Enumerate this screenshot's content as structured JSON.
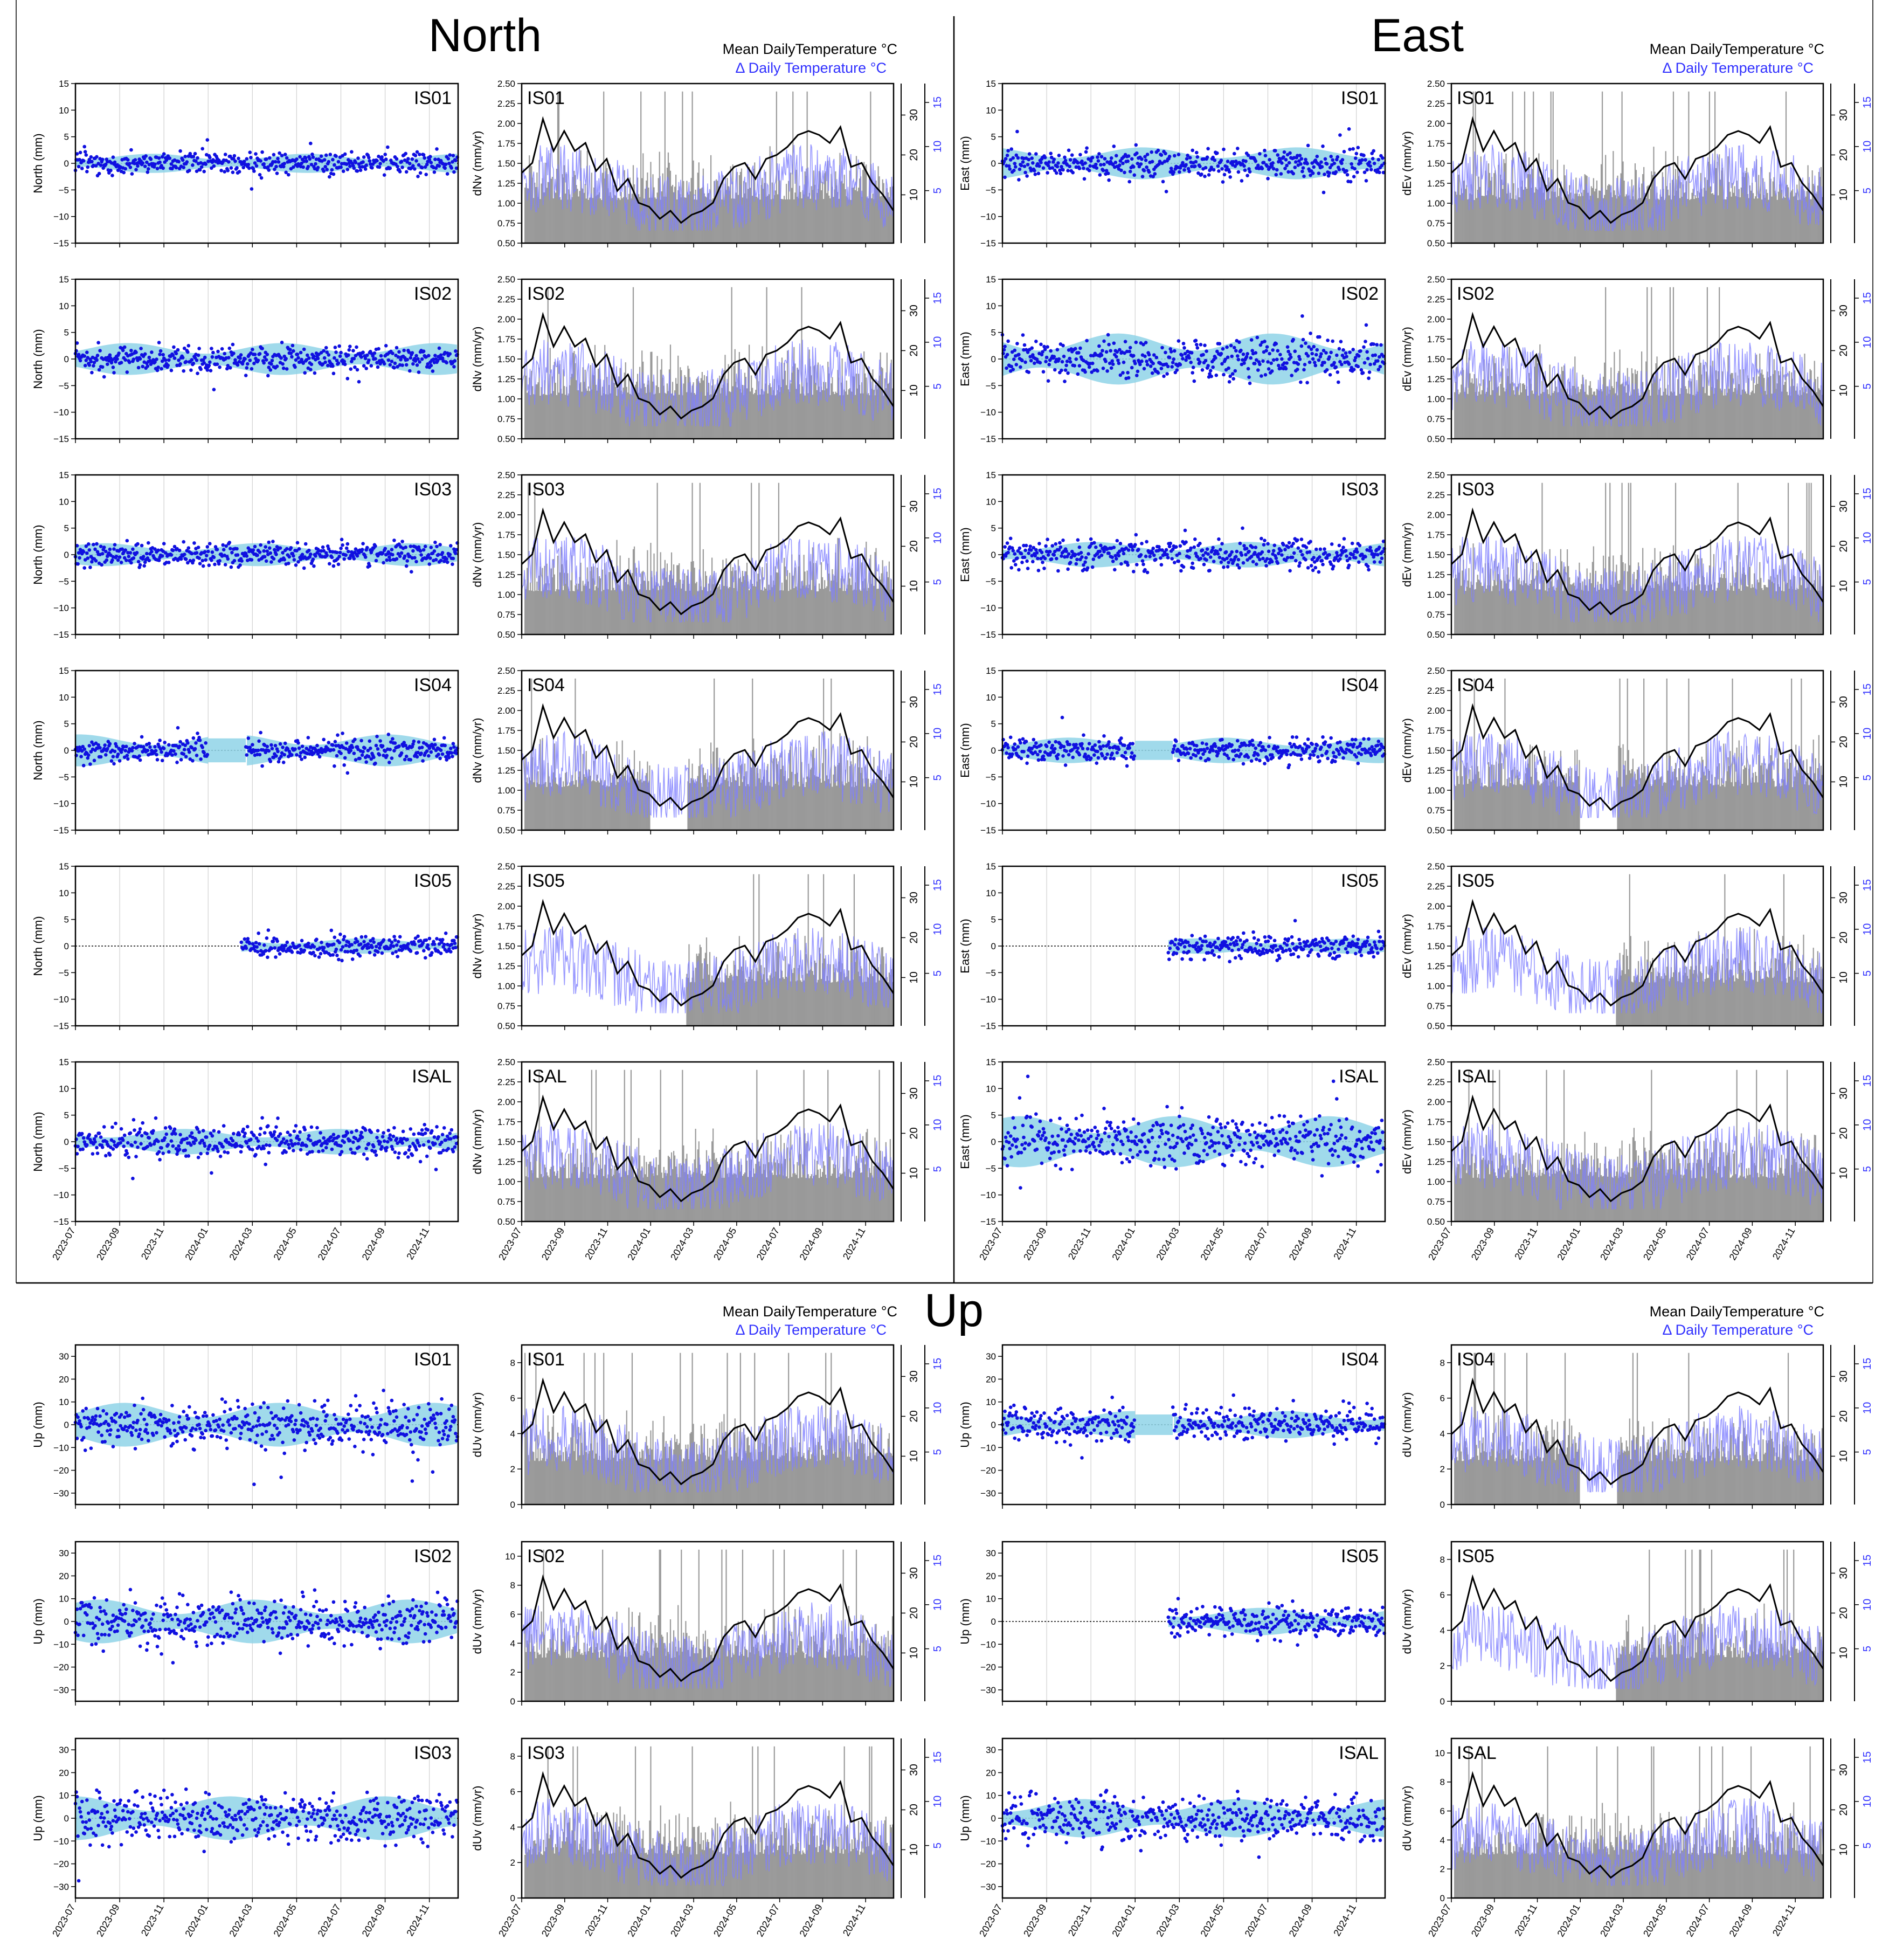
{
  "figure": {
    "sections": [
      {
        "id": "north",
        "title": "North",
        "legend": {
          "mean": "Mean DailyTemperature °C",
          "delta": "Δ  Daily Temperature °C"
        }
      },
      {
        "id": "east",
        "title": "East",
        "legend": {
          "mean": "Mean DailyTemperature °C",
          "delta": "Δ  Daily Temperature °C"
        }
      },
      {
        "id": "up",
        "title": "Up",
        "legend": {
          "mean": "Mean DailyTemperature °C",
          "delta": "Δ  Daily Temperature °C"
        }
      }
    ]
  },
  "chart_data": {
    "type": "scatter",
    "x_axis": {
      "start": "2023-07",
      "end": "2024-12",
      "tick_labels": [
        "2023-07",
        "2023-09",
        "2023-11",
        "2024-01",
        "2024-03",
        "2024-05",
        "2024-07",
        "2024-09",
        "2024-11"
      ]
    },
    "temperature_axis": {
      "mean_ticks": [
        "10",
        "20",
        "30"
      ],
      "delta_ticks": [
        "5",
        "10",
        "15"
      ]
    },
    "mean_temperature_curve": [
      15.5,
      18,
      29,
      21,
      26,
      21,
      23,
      16,
      19,
      11,
      14,
      8,
      7,
      4,
      6,
      3,
      5,
      6,
      8,
      14,
      17,
      18,
      14,
      19,
      20,
      22,
      25,
      26,
      25,
      23,
      27,
      17,
      18,
      13,
      10,
      6
    ],
    "panels": [
      {
        "section": "north",
        "component": "North",
        "station": "IS01",
        "disp_ylabel": "North (mm)",
        "disp_ylim": [
          -15,
          15
        ],
        "disp_ticks": [
          "15",
          "10",
          "5",
          "0",
          "−5",
          "−10",
          "−15"
        ],
        "rate_ylabel": "dNv (mm/yr)",
        "rate_ylim": [
          0.5,
          2.5
        ],
        "rate_ticks": [
          "2.50",
          "2.25",
          "2.00",
          "1.75",
          "1.50",
          "1.25",
          "1.00",
          "0.75",
          "0.50"
        ],
        "band": 1.5,
        "spread": 1.4,
        "seed": 11,
        "start_month": 0,
        "gap": null,
        "show_x": false
      },
      {
        "section": "north",
        "component": "North",
        "station": "IS02",
        "disp_ylabel": "North (mm)",
        "disp_ylim": [
          -15,
          15
        ],
        "disp_ticks": [
          "15",
          "10",
          "5",
          "0",
          "−5",
          "−10",
          "−15"
        ],
        "rate_ylabel": "dNv (mm/yr)",
        "rate_ylim": [
          0.5,
          2.5
        ],
        "rate_ticks": [
          "2.50",
          "2.25",
          "2.00",
          "1.75",
          "1.50",
          "1.25",
          "1.00",
          "0.75",
          "0.50"
        ],
        "band": 2.5,
        "spread": 1.7,
        "seed": 12,
        "start_month": 0,
        "gap": null,
        "show_x": false
      },
      {
        "section": "north",
        "component": "North",
        "station": "IS03",
        "disp_ylabel": "North (mm)",
        "disp_ylim": [
          -15,
          15
        ],
        "disp_ticks": [
          "15",
          "10",
          "5",
          "0",
          "−5",
          "−10",
          "−15"
        ],
        "rate_ylabel": "dNv (mm/yr)",
        "rate_ylim": [
          0.5,
          2.5
        ],
        "rate_ticks": [
          "2.50",
          "2.25",
          "2.00",
          "1.75",
          "1.50",
          "1.25",
          "1.00",
          "0.75",
          "0.50"
        ],
        "band": 1.8,
        "spread": 1.6,
        "seed": 13,
        "start_month": 0,
        "gap": null,
        "show_x": false
      },
      {
        "section": "north",
        "component": "North",
        "station": "IS04",
        "disp_ylabel": "North (mm)",
        "disp_ylim": [
          -15,
          15
        ],
        "disp_ticks": [
          "15",
          "10",
          "5",
          "0",
          "−5",
          "−10",
          "−15"
        ],
        "rate_ylabel": "dNv (mm/yr)",
        "rate_ylim": [
          0.5,
          2.5
        ],
        "rate_ticks": [
          "2.50",
          "2.25",
          "2.00",
          "1.75",
          "1.50",
          "1.25",
          "1.00",
          "0.75",
          "0.50"
        ],
        "band": 2.5,
        "spread": 1.5,
        "seed": 14,
        "start_month": 0,
        "gap": [
          6.0,
          7.7
        ],
        "show_x": false
      },
      {
        "section": "north",
        "component": "North",
        "station": "IS05",
        "disp_ylabel": "North (mm)",
        "disp_ylim": [
          -15,
          15
        ],
        "disp_ticks": [
          "15",
          "10",
          "5",
          "0",
          "−5",
          "−10",
          "−15"
        ],
        "rate_ylabel": "dNv (mm/yr)",
        "rate_ylim": [
          0.5,
          2.5
        ],
        "rate_ticks": [
          "2.50",
          "2.25",
          "2.00",
          "1.75",
          "1.50",
          "1.25",
          "1.00",
          "0.75",
          "0.50"
        ],
        "band": 1.2,
        "spread": 1.5,
        "seed": 15,
        "start_month": 7.5,
        "gap": null,
        "show_x": false
      },
      {
        "section": "north",
        "component": "North",
        "station": "ISAL",
        "disp_ylabel": "North (mm)",
        "disp_ylim": [
          -15,
          15
        ],
        "disp_ticks": [
          "15",
          "10",
          "5",
          "0",
          "−5",
          "−10",
          "−15"
        ],
        "rate_ylabel": "dNv (mm/yr)",
        "rate_ylim": [
          0.5,
          2.5
        ],
        "rate_ticks": [
          "2.50",
          "2.25",
          "2.00",
          "1.75",
          "1.50",
          "1.25",
          "1.00",
          "0.75",
          "0.50"
        ],
        "band": 2.0,
        "spread": 2.1,
        "seed": 16,
        "start_month": 0,
        "gap": null,
        "show_x": true
      },
      {
        "section": "east",
        "component": "East",
        "station": "IS01",
        "disp_ylabel": "East (mm)",
        "disp_ylim": [
          -15,
          15
        ],
        "disp_ticks": [
          "15",
          "10",
          "5",
          "0",
          "−5",
          "−10",
          "−15"
        ],
        "rate_ylabel": "dEv (mm/yr)",
        "rate_ylim": [
          0.5,
          2.5
        ],
        "rate_ticks": [
          "2.50",
          "2.25",
          "2.00",
          "1.75",
          "1.50",
          "1.25",
          "1.00",
          "0.75",
          "0.50"
        ],
        "band": 2.5,
        "spread": 2.0,
        "seed": 21,
        "start_month": 0,
        "gap": null,
        "show_x": false
      },
      {
        "section": "east",
        "component": "East",
        "station": "IS02",
        "disp_ylabel": "East (mm)",
        "disp_ylim": [
          -15,
          15
        ],
        "disp_ticks": [
          "15",
          "10",
          "5",
          "0",
          "−5",
          "−10",
          "−15"
        ],
        "rate_ylabel": "dEv (mm/yr)",
        "rate_ylim": [
          0.5,
          2.5
        ],
        "rate_ticks": [
          "2.50",
          "2.25",
          "2.00",
          "1.75",
          "1.50",
          "1.25",
          "1.00",
          "0.75",
          "0.50"
        ],
        "band": 4.0,
        "spread": 2.6,
        "seed": 22,
        "start_month": 0,
        "gap": null,
        "show_x": false
      },
      {
        "section": "east",
        "component": "East",
        "station": "IS03",
        "disp_ylabel": "East (mm)",
        "disp_ylim": [
          -15,
          15
        ],
        "disp_ticks": [
          "15",
          "10",
          "5",
          "0",
          "−5",
          "−10",
          "−15"
        ],
        "rate_ylabel": "dEv (mm/yr)",
        "rate_ylim": [
          0.5,
          2.5
        ],
        "rate_ticks": [
          "2.50",
          "2.25",
          "2.00",
          "1.75",
          "1.50",
          "1.25",
          "1.00",
          "0.75",
          "0.50"
        ],
        "band": 2.0,
        "spread": 2.0,
        "seed": 23,
        "start_month": 0,
        "gap": null,
        "show_x": false
      },
      {
        "section": "east",
        "component": "East",
        "station": "IS04",
        "disp_ylabel": "East (mm)",
        "disp_ylim": [
          -15,
          15
        ],
        "disp_ticks": [
          "15",
          "10",
          "5",
          "0",
          "−5",
          "−10",
          "−15"
        ],
        "rate_ylabel": "dEv (mm/yr)",
        "rate_ylim": [
          0.5,
          2.5
        ],
        "rate_ticks": [
          "2.50",
          "2.25",
          "2.00",
          "1.75",
          "1.50",
          "1.25",
          "1.00",
          "0.75",
          "0.50"
        ],
        "band": 2.0,
        "spread": 1.6,
        "seed": 24,
        "start_month": 0,
        "gap": [
          6.0,
          7.7
        ],
        "show_x": false
      },
      {
        "section": "east",
        "component": "East",
        "station": "IS05",
        "disp_ylabel": "East (mm)",
        "disp_ylim": [
          -15,
          15
        ],
        "disp_ticks": [
          "15",
          "10",
          "5",
          "0",
          "−5",
          "−10",
          "−15"
        ],
        "rate_ylabel": "dEv (mm/yr)",
        "rate_ylim": [
          0.5,
          2.5
        ],
        "rate_ticks": [
          "2.50",
          "2.25",
          "2.00",
          "1.75",
          "1.50",
          "1.25",
          "1.00",
          "0.75",
          "0.50"
        ],
        "band": 1.2,
        "spread": 1.6,
        "seed": 25,
        "start_month": 7.5,
        "gap": null,
        "show_x": false
      },
      {
        "section": "east",
        "component": "East",
        "station": "ISAL",
        "disp_ylabel": "East (mm)",
        "disp_ylim": [
          -15,
          15
        ],
        "disp_ticks": [
          "15",
          "10",
          "5",
          "0",
          "−5",
          "−10",
          "−15"
        ],
        "rate_ylabel": "dEv (mm/yr)",
        "rate_ylim": [
          0.5,
          2.5
        ],
        "rate_ticks": [
          "2.50",
          "2.25",
          "2.00",
          "1.75",
          "1.50",
          "1.25",
          "1.00",
          "0.75",
          "0.50"
        ],
        "band": 4.0,
        "spread": 3.2,
        "seed": 26,
        "start_month": 0,
        "gap": null,
        "show_x": true
      },
      {
        "section": "up",
        "component": "Up",
        "station": "IS01",
        "disp_ylabel": "Up (mm)",
        "disp_ylim": [
          -35,
          35
        ],
        "disp_ticks": [
          "30",
          "20",
          "10",
          "0",
          "−10",
          "−20",
          "−30"
        ],
        "rate_ylabel": "dUv (mm/yr)",
        "rate_ylim": [
          0,
          9
        ],
        "rate_ticks": [
          "8",
          "6",
          "4",
          "2",
          "0"
        ],
        "band": 8,
        "spread": 6.5,
        "seed": 31,
        "start_month": 0,
        "gap": null,
        "show_x": false
      },
      {
        "section": "up",
        "component": "Up",
        "station": "IS02",
        "disp_ylabel": "Up (mm)",
        "disp_ylim": [
          -35,
          35
        ],
        "disp_ticks": [
          "30",
          "20",
          "10",
          "0",
          "−10",
          "−20",
          "−30"
        ],
        "rate_ylabel": "dUv (mm/yr)",
        "rate_ylim": [
          0,
          11
        ],
        "rate_ticks": [
          "10",
          "8",
          "6",
          "4",
          "2",
          "0"
        ],
        "band": 8,
        "spread": 7,
        "seed": 32,
        "start_month": 0,
        "gap": null,
        "show_x": false
      },
      {
        "section": "up",
        "component": "Up",
        "station": "IS03",
        "disp_ylabel": "Up (mm)",
        "disp_ylim": [
          -35,
          35
        ],
        "disp_ticks": [
          "30",
          "20",
          "10",
          "0",
          "−10",
          "−20",
          "−30"
        ],
        "rate_ylabel": "dUv (mm/yr)",
        "rate_ylim": [
          0,
          9
        ],
        "rate_ticks": [
          "8",
          "6",
          "4",
          "2",
          "0"
        ],
        "band": 8,
        "spread": 7.5,
        "seed": 33,
        "start_month": 0,
        "gap": null,
        "show_x": true
      },
      {
        "section": "up",
        "component": "Up",
        "station": "IS04",
        "disp_ylabel": "Up (mm)",
        "disp_ylim": [
          -35,
          35
        ],
        "disp_ticks": [
          "30",
          "20",
          "10",
          "0",
          "−10",
          "−20",
          "−30"
        ],
        "rate_ylabel": "dUv (mm/yr)",
        "rate_ylim": [
          0,
          9
        ],
        "rate_ticks": [
          "8",
          "6",
          "4",
          "2",
          "0"
        ],
        "band": 5,
        "spread": 5,
        "seed": 34,
        "start_month": 0,
        "gap": [
          6.0,
          7.7
        ],
        "show_x": false
      },
      {
        "section": "up",
        "component": "Up",
        "station": "IS05",
        "disp_ylabel": "Up (mm)",
        "disp_ylim": [
          -35,
          35
        ],
        "disp_ticks": [
          "30",
          "20",
          "10",
          "0",
          "−10",
          "−20",
          "−30"
        ],
        "rate_ylabel": "dUv (mm/yr)",
        "rate_ylim": [
          0,
          9
        ],
        "rate_ticks": [
          "8",
          "6",
          "4",
          "2",
          "0"
        ],
        "band": 5,
        "spread": 5,
        "seed": 35,
        "start_month": 7.5,
        "gap": null,
        "show_x": false
      },
      {
        "section": "up",
        "component": "Up",
        "station": "ISAL",
        "disp_ylabel": "Up (mm)",
        "disp_ylim": [
          -35,
          35
        ],
        "disp_ticks": [
          "30",
          "20",
          "10",
          "0",
          "−10",
          "−20",
          "−30"
        ],
        "rate_ylabel": "dUv (mm/yr)",
        "rate_ylim": [
          0,
          11
        ],
        "rate_ticks": [
          "10",
          "8",
          "6",
          "4",
          "2",
          "0"
        ],
        "band": 7,
        "spread": 7,
        "seed": 36,
        "start_month": 0,
        "gap": null,
        "show_x": true
      }
    ],
    "colors": {
      "points": "#1010e0",
      "band": "#8fd3e8",
      "mean_line": "#000000",
      "delta_line": "#7f7fff",
      "rate_bars": "#7a7a7a",
      "frame": "#000000",
      "grid": "#d0d0d0"
    }
  }
}
